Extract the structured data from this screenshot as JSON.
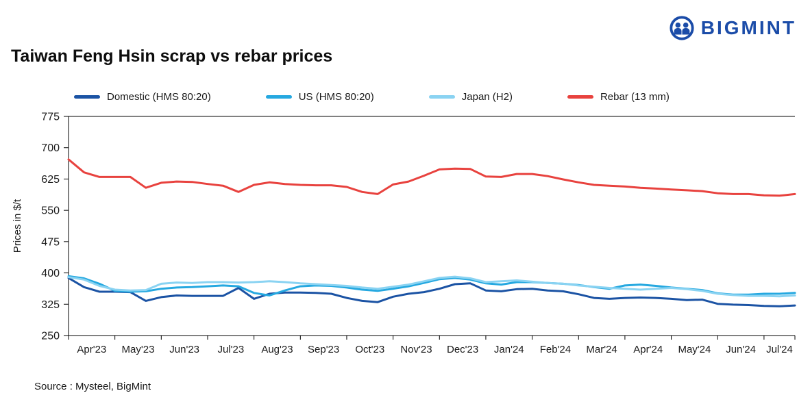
{
  "logo": {
    "text": "BIGMINT"
  },
  "title": "Taiwan Feng Hsin scrap vs rebar prices",
  "source": "Source : Mysteel, BigMint",
  "chart_data": {
    "type": "line",
    "title": "Taiwan Feng Hsin scrap vs rebar prices",
    "ylabel": "Prices in $/t",
    "xlabel": "",
    "ylim": [
      250,
      775
    ],
    "yticks": [
      250,
      325,
      400,
      475,
      550,
      625,
      700,
      775
    ],
    "grid": false,
    "legend_position": "top",
    "points_per_month": 3,
    "categories": [
      "Apr'23",
      "May'23",
      "Jun'23",
      "Jul'23",
      "Aug'23",
      "Sep'23",
      "Oct'23",
      "Nov'23",
      "Dec'23",
      "Jan'24",
      "Feb'24",
      "Mar'24",
      "Apr'24",
      "May'24",
      "Jun'24",
      "Jul'24"
    ],
    "series": [
      {
        "name": "Domestic (HMS 80:20)",
        "color": "#1B53A4",
        "values": [
          388,
          366,
          355,
          355,
          354,
          333,
          342,
          346,
          345,
          345,
          345,
          364,
          338,
          350,
          353,
          353,
          352,
          350,
          340,
          333,
          330,
          343,
          350,
          354,
          362,
          373,
          375,
          358,
          356,
          361,
          362,
          358,
          356,
          349,
          340,
          338,
          340,
          341,
          340,
          338,
          335,
          336,
          326,
          324,
          323,
          321,
          320,
          322
        ]
      },
      {
        "name": "US (HMS 80:20)",
        "color": "#25A8E0",
        "values": [
          392,
          387,
          374,
          357,
          355,
          356,
          362,
          365,
          366,
          368,
          370,
          368,
          352,
          346,
          358,
          368,
          370,
          369,
          365,
          360,
          357,
          362,
          368,
          376,
          385,
          388,
          384,
          375,
          372,
          378,
          378,
          376,
          374,
          371,
          366,
          362,
          370,
          372,
          369,
          365,
          362,
          359,
          351,
          348,
          348,
          350,
          350,
          352
        ]
      },
      {
        "name": "Japan (H2)",
        "color": "#8AD3F2",
        "values": [
          390,
          384,
          369,
          360,
          358,
          359,
          374,
          377,
          376,
          378,
          378,
          377,
          378,
          380,
          378,
          375,
          373,
          371,
          369,
          365,
          362,
          367,
          372,
          380,
          388,
          391,
          387,
          378,
          380,
          382,
          379,
          376,
          374,
          370,
          367,
          364,
          362,
          360,
          362,
          364,
          361,
          357,
          350,
          347,
          345,
          345,
          344,
          346
        ]
      },
      {
        "name": "Rebar (13 mm)",
        "color": "#E8423E",
        "values": [
          672,
          641,
          630,
          630,
          630,
          604,
          616,
          619,
          618,
          613,
          609,
          594,
          611,
          617,
          613,
          611,
          610,
          610,
          606,
          594,
          589,
          612,
          619,
          633,
          648,
          650,
          649,
          631,
          630,
          637,
          637,
          632,
          624,
          617,
          611,
          609,
          607,
          604,
          602,
          600,
          598,
          596,
          591,
          589,
          589,
          586,
          585,
          589
        ]
      }
    ]
  }
}
